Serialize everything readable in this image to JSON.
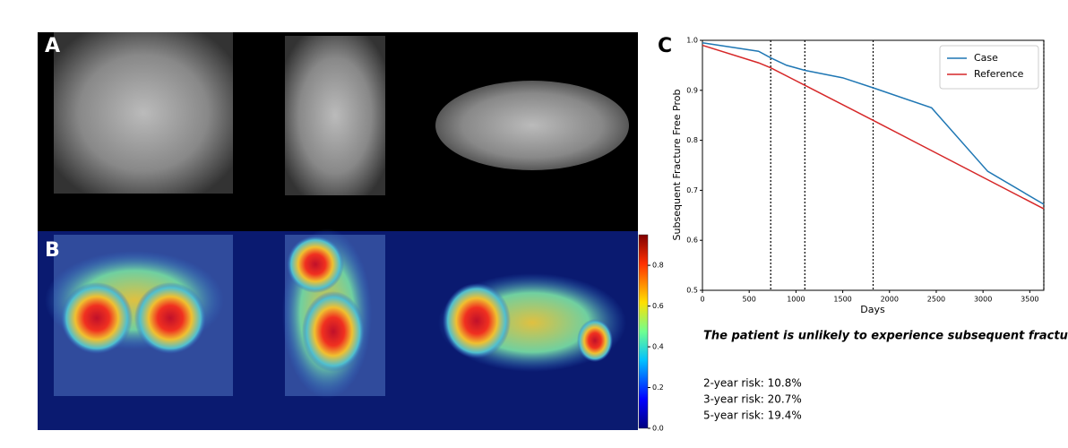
{
  "panels": {
    "a": "A",
    "b": "B",
    "c": "C"
  },
  "colorbar": {
    "lim": [
      0,
      0.95
    ],
    "ticks": [
      {
        "value": 0,
        "label": "0.0"
      },
      0.2,
      0.4,
      0.6,
      0.8
    ]
  },
  "chart_data": {
    "type": "line",
    "xlabel": "Days",
    "ylabel": "Subsequent Fracture Free Prob",
    "xlim": [
      0,
      3650
    ],
    "xticks": [
      0,
      500,
      1000,
      1500,
      2000,
      2500,
      3000,
      3500
    ],
    "ylim": [
      0.5,
      1.0
    ],
    "yticks": [
      0.5,
      0.6,
      0.7,
      0.8,
      0.9,
      {
        "value": 1,
        "label": "1.0"
      }
    ],
    "grid": false,
    "legend": "upper right",
    "vlines": [
      730,
      1095,
      1825,
      3650
    ],
    "series": [
      {
        "name": "Case",
        "color": "#1f77b4",
        "x": [
          0,
          600,
          730,
          900,
          1095,
          1500,
          1825,
          2450,
          3050,
          3650
        ],
        "values": [
          0.995,
          0.978,
          0.965,
          0.95,
          0.94,
          0.925,
          0.905,
          0.865,
          0.738,
          0.672
        ]
      },
      {
        "name": "Reference",
        "color": "#d62728",
        "x": [
          0,
          600,
          730,
          1095,
          1825,
          3650
        ],
        "values": [
          0.99,
          0.955,
          0.945,
          0.91,
          0.84,
          0.663
        ]
      }
    ]
  },
  "verdict": "The patient is unlikely to experience subsequent fracture",
  "risks": [
    "2-year risk: 10.8%",
    "3-year risk: 20.7%",
    "5-year risk: 19.4%"
  ]
}
